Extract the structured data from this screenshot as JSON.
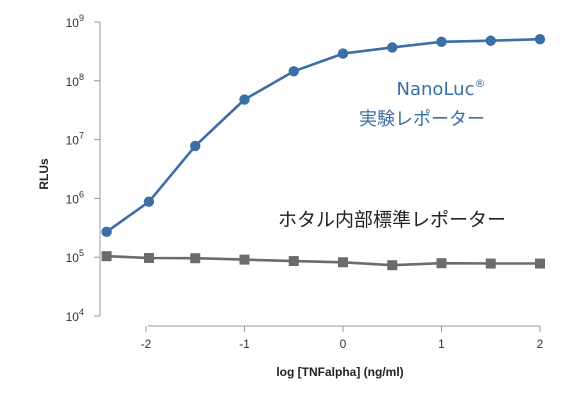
{
  "chart_data": {
    "type": "line",
    "xlabel": "log [TNFalpha] (ng/ml)",
    "ylabel": "RLUs",
    "x_ticks": [
      "-2",
      "-1",
      "0",
      "1",
      "2"
    ],
    "x_tick_values": [
      -2,
      -1,
      0,
      1,
      2
    ],
    "xlim": [
      -2.4,
      2
    ],
    "y_scale": "log",
    "ylim": [
      10000,
      1000000000
    ],
    "y_tick_values": [
      10000,
      100000,
      1000000,
      10000000,
      100000000,
      1000000000
    ],
    "y_ticks": [
      {
        "base": "10",
        "exp": "4"
      },
      {
        "base": "10",
        "exp": "5"
      },
      {
        "base": "10",
        "exp": "6"
      },
      {
        "base": "10",
        "exp": "7"
      },
      {
        "base": "10",
        "exp": "8"
      },
      {
        "base": "10",
        "exp": "9"
      }
    ],
    "grid": false,
    "series": [
      {
        "name": "NanoLuc® 実験レポーター",
        "label_line1": "NanoLuc",
        "label_mark": "®",
        "label_line2": "実験レポーター",
        "color": "#3a6ea5",
        "marker": "circle",
        "x": [
          -2.4,
          -1.97,
          -1.5,
          -1.0,
          -0.5,
          0.0,
          0.5,
          1.0,
          1.5,
          2.0
        ],
        "y": [
          270000,
          880000,
          7800000,
          48000000,
          145000000,
          290000000,
          370000000,
          460000000,
          480000000,
          510000000
        ]
      },
      {
        "name": "ホタル内部標準レポーター",
        "label_line1": "ホタル内部標準レポーター",
        "color": "#6b6b6b",
        "marker": "square",
        "x": [
          -2.4,
          -1.97,
          -1.5,
          -1.0,
          -0.5,
          0.0,
          0.5,
          1.0,
          1.5,
          2.0
        ],
        "y": [
          104000,
          97000,
          96000,
          91000,
          86000,
          82000,
          73000,
          79000,
          78000,
          78000
        ]
      }
    ]
  }
}
